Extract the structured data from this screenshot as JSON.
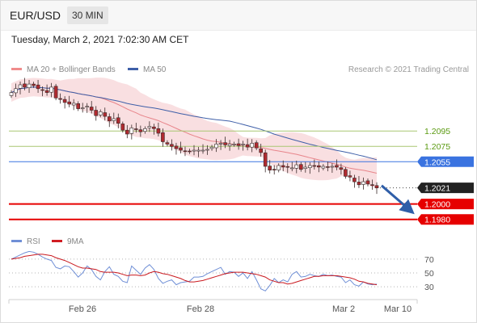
{
  "header": {
    "symbol": "EUR/USD",
    "timeframe": "30 MIN",
    "datetime": "Tuesday, March 2, 2021 7:02:30 AM CET"
  },
  "legend": {
    "ma20_label": "MA 20 + Bollinger Bands",
    "ma50_label": "MA 50",
    "credit": "Research © 2021 Trading Central"
  },
  "rsi_legend": {
    "rsi_label": "RSI",
    "ma_label": "9MA"
  },
  "colors": {
    "bollinger": "#f2b8bc",
    "ma20": "#e8858b",
    "ma50": "#3e5fa8",
    "candle_up": "#ffffff",
    "candle_down": "#b02a30",
    "support": "#e60000",
    "resistance": "#93b83b",
    "pivot": "#3a73e0",
    "rsi": "#6f8fd6",
    "rsi_ma": "#c9181e"
  },
  "chart_data": [
    {
      "type": "candlestick",
      "title": "EUR/USD",
      "x_ticks": [
        "Feb 26",
        "Feb 28",
        "Mar 2",
        "Mar 10"
      ],
      "y_range": [
        1.1965,
        1.2175
      ],
      "series": [
        {
          "name": "MA 20 + Bollinger Bands",
          "role": "bollinger_band_and_ma20"
        },
        {
          "name": "MA 50",
          "role": "ma50"
        }
      ],
      "close_approx": [
        1.2145,
        1.215,
        1.2155,
        1.2152,
        1.2156,
        1.2154,
        1.215,
        1.2148,
        1.2145,
        1.2152,
        1.2138,
        1.2136,
        1.2132,
        1.213,
        1.2131,
        1.2124,
        1.2125,
        1.2127,
        1.2122,
        1.2115,
        1.212,
        1.2114,
        1.2108,
        1.2111,
        1.2105,
        1.2096,
        1.2091,
        1.2099,
        1.2097,
        1.2094,
        1.2098,
        1.2101,
        1.2098,
        1.2092,
        1.2081,
        1.2078,
        1.2075,
        1.2072,
        1.207,
        1.2069,
        1.2068,
        1.207,
        1.207,
        1.207,
        1.2071,
        1.2074,
        1.2078,
        1.2079,
        1.2077,
        1.2078,
        1.2078,
        1.2076,
        1.2078,
        1.2074,
        1.2079,
        1.2073,
        1.2067,
        1.2049,
        1.2044,
        1.2045,
        1.205,
        1.2048,
        1.2048,
        1.2047,
        1.2051,
        1.2045,
        1.2048,
        1.205,
        1.2049,
        1.2048,
        1.2049,
        1.2048,
        1.2049,
        1.2048,
        1.2045,
        1.2036,
        1.2035,
        1.2029,
        1.2025,
        1.2029,
        1.2026,
        1.2024,
        1.2021
      ],
      "levels": [
        {
          "value": "1.2095",
          "kind": "resistance"
        },
        {
          "value": "1.2075",
          "kind": "resistance"
        },
        {
          "value": "1.2055",
          "kind": "pivot"
        },
        {
          "value": "1.2021",
          "kind": "last"
        },
        {
          "value": "1.2000",
          "kind": "support"
        },
        {
          "value": "1.1980",
          "kind": "support"
        }
      ],
      "forecast": "down"
    },
    {
      "type": "line",
      "title": "RSI",
      "y_ticks": [
        "70",
        "50",
        "30"
      ],
      "y_range": [
        15,
        85
      ],
      "series": [
        {
          "name": "RSI",
          "values": [
            70,
            73,
            76,
            79,
            81,
            80,
            77,
            73,
            70,
            68,
            58,
            56,
            60,
            59,
            52,
            44,
            50,
            60,
            55,
            45,
            40,
            52,
            59,
            48,
            45,
            38,
            36,
            60,
            54,
            48,
            57,
            62,
            55,
            42,
            35,
            38,
            40,
            33,
            36,
            37,
            38,
            44,
            44,
            45,
            49,
            52,
            55,
            58,
            48,
            52,
            51,
            45,
            50,
            42,
            52,
            40,
            27,
            24,
            32,
            42,
            36,
            40,
            37,
            48,
            52,
            44,
            45,
            48,
            46,
            45,
            48,
            46,
            47,
            45,
            44,
            36,
            40,
            33,
            31,
            37,
            34,
            33,
            34
          ]
        },
        {
          "name": "9MA",
          "values": [
            70,
            71,
            72,
            74,
            75,
            76,
            77,
            77,
            76,
            75,
            72,
            70,
            68,
            65,
            62,
            59,
            57,
            57,
            56,
            55,
            52,
            51,
            51,
            51,
            50,
            48,
            46,
            47,
            47,
            46,
            47,
            50,
            52,
            51,
            49,
            48,
            46,
            44,
            42,
            39,
            37,
            37,
            38,
            39,
            41,
            43,
            45,
            47,
            49,
            50,
            51,
            51,
            51,
            50,
            49,
            48,
            46,
            44,
            40,
            38,
            36,
            36,
            34,
            35,
            37,
            39,
            41,
            43,
            45,
            45,
            46,
            46,
            46,
            46,
            45,
            44,
            43,
            41,
            38,
            37,
            35,
            34,
            33
          ]
        }
      ]
    }
  ]
}
